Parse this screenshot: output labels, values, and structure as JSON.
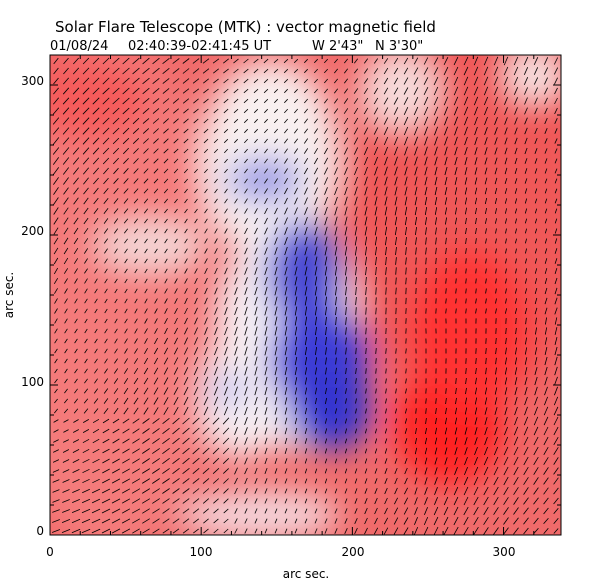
{
  "title": "Solar Flare Telescope (MTK) : vector magnetic field",
  "subtitle": {
    "date": "01/08/24",
    "time_range": "02:40:39-02:41:45 UT",
    "longitude": "W 2'43\"",
    "latitude": "N 3'30\""
  },
  "axes": {
    "xlabel": "arc sec.",
    "ylabel": "arc sec.",
    "xlim": [
      0,
      338
    ],
    "ylim": [
      0,
      320
    ],
    "x_ticks": [
      "0",
      "100",
      "200",
      "300"
    ],
    "y_ticks": [
      "0",
      "100",
      "200",
      "300"
    ]
  },
  "colors": {
    "positive_polarity": "#ff3b3b",
    "negative_polarity": "#3a3ad6",
    "neutral": "#ffffff",
    "vectors": "#000000"
  }
}
